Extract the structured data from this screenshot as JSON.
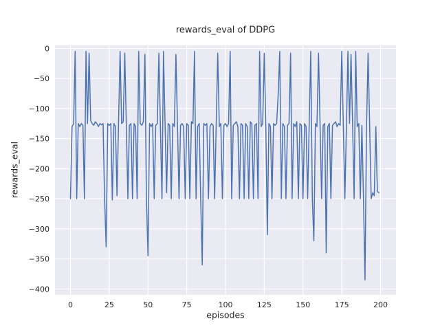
{
  "figure": {
    "title": "rewards_eval of DDPG",
    "xlabel": "episodes",
    "ylabel": "rewards_eval"
  },
  "style": {
    "fig_bg": "#ffffff",
    "axes_bg": "#eaeaf2",
    "grid_color": "#ffffff",
    "line_color": "#4c72b0",
    "text_color": "#262626",
    "tick_font_px": 11
  },
  "chart_data": {
    "type": "line",
    "title": "rewards_eval of DDPG",
    "xlabel": "episodes",
    "ylabel": "rewards_eval",
    "grid": true,
    "legend": false,
    "xlim": [
      -10,
      210
    ],
    "ylim": [
      -410,
      5
    ],
    "xticks": [
      0,
      25,
      50,
      75,
      100,
      125,
      150,
      175,
      200
    ],
    "xtick_labels": [
      "0",
      "25",
      "50",
      "75",
      "100",
      "125",
      "150",
      "175",
      "200"
    ],
    "yticks": [
      0,
      -50,
      -100,
      -150,
      -200,
      -250,
      -300,
      -350,
      -400
    ],
    "ytick_labels": [
      "0",
      "−50",
      "−100",
      "−150",
      "−200",
      "−250",
      "−300",
      "−350",
      "−400"
    ],
    "series": [
      {
        "name": "rewards_eval",
        "x_start": 0,
        "x_step": 1,
        "values": [
          -250,
          -130,
          -125,
          -5,
          -250,
          -125,
          -130,
          -125,
          -128,
          -250,
          -5,
          -125,
          -8,
          -120,
          -125,
          -128,
          -122,
          -125,
          -130,
          -125,
          -127,
          -125,
          -248,
          -330,
          -125,
          -128,
          -125,
          -252,
          -125,
          -130,
          -245,
          -125,
          -5,
          -125,
          -122,
          -8,
          -125,
          -250,
          -128,
          -125,
          -250,
          -125,
          -130,
          -250,
          -5,
          -125,
          -128,
          -122,
          -10,
          -250,
          -345,
          -125,
          -130,
          -125,
          -250,
          -128,
          -125,
          -8,
          -130,
          -250,
          -5,
          -125,
          -240,
          -125,
          -128,
          -250,
          -125,
          -130,
          -10,
          -125,
          -250,
          -128,
          -125,
          -130,
          -250,
          -125,
          -128,
          -250,
          -122,
          -125,
          -5,
          -250,
          -130,
          -125,
          -250,
          -360,
          -125,
          -128,
          -125,
          -250,
          -130,
          -125,
          -128,
          -250,
          -125,
          -8,
          -130,
          -125,
          -250,
          -128,
          -125,
          -130,
          -125,
          -5,
          -250,
          -128,
          -125,
          -122,
          -130,
          -250,
          -125,
          -128,
          -250,
          -125,
          -130,
          -250,
          -122,
          -125,
          -250,
          -128,
          -125,
          -250,
          -5,
          -130,
          -125,
          -8,
          -128,
          -310,
          -125,
          -130,
          -250,
          -125,
          -128,
          -125,
          -75,
          -5,
          -250,
          -125,
          -130,
          -250,
          -128,
          -125,
          -8,
          -250,
          -125,
          -130,
          -122,
          -250,
          -125,
          -128,
          -250,
          -125,
          -130,
          -250,
          -128,
          -5,
          -250,
          -320,
          -125,
          -130,
          -8,
          -125,
          -250,
          -128,
          -125,
          -340,
          -130,
          -125,
          -250,
          -128,
          -125,
          -122,
          -130,
          -125,
          -128,
          -5,
          -125,
          -250,
          -130,
          -5,
          -125,
          -10,
          -128,
          -250,
          -5,
          -130,
          -125,
          -250,
          -128,
          -250,
          -385,
          -125,
          -8,
          -130,
          -250,
          -240,
          -245,
          -130,
          -238,
          -240
        ]
      }
    ]
  }
}
